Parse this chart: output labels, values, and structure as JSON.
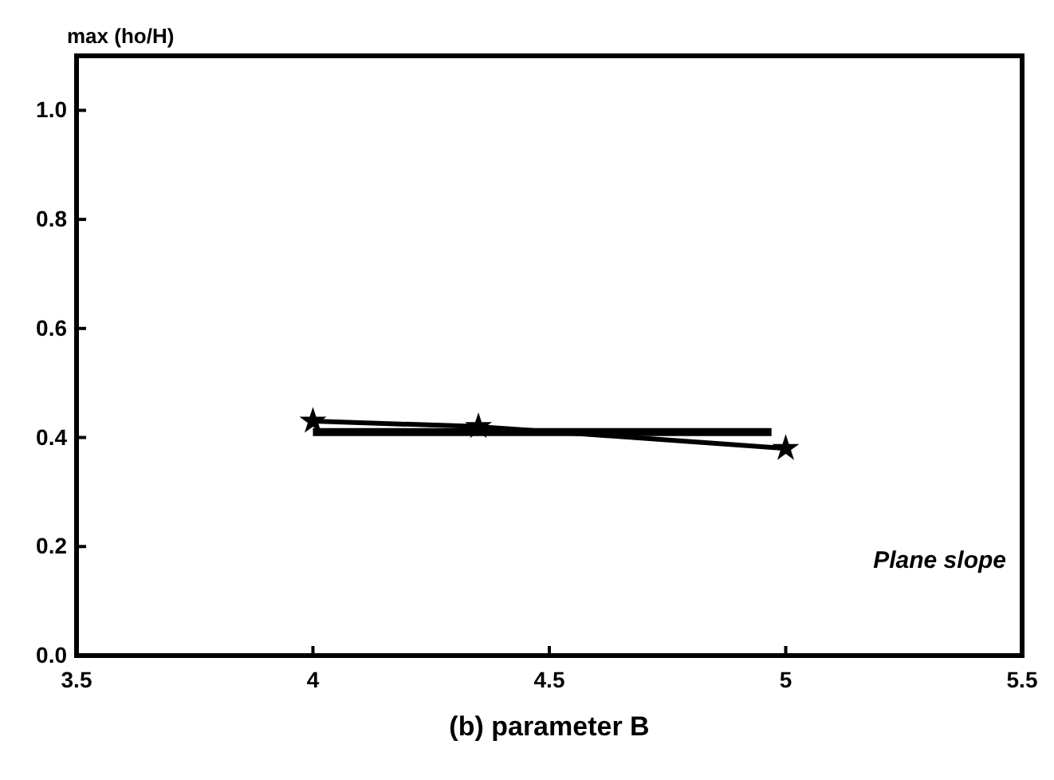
{
  "chart_data": {
    "type": "line",
    "ylabel": "max (ho/H)",
    "xlabel": "(b)  parameter B",
    "xlim": [
      3.5,
      5.5
    ],
    "xticks": [
      3.5,
      4,
      4.5,
      5,
      5.5
    ],
    "ylim": [
      0,
      1.1
    ],
    "yticks": [
      {
        "value": 0,
        "label": "0.0"
      },
      0.2,
      0.4,
      0.6,
      0.8,
      {
        "value": 1,
        "label": "1.0"
      }
    ],
    "series": [
      {
        "color": "#000000",
        "x": [
          4,
          4.35,
          5
        ],
        "values": [
          0.43,
          0.42,
          0.38
        ],
        "marker": "star"
      },
      {
        "color": "#000000",
        "x": [
          4,
          4.97
        ],
        "values": [
          0.41,
          0.41
        ],
        "marker": "none"
      }
    ],
    "annotations": [
      "Plane slope"
    ]
  }
}
